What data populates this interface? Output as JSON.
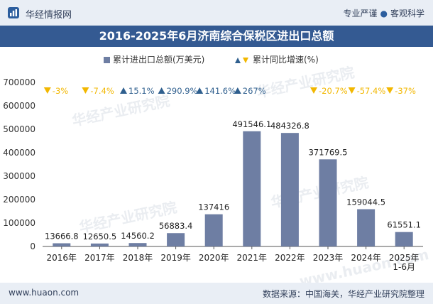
{
  "header": {
    "brand": "华经情报网",
    "tagline_left": "专业严谨",
    "tagline_right": "客观科学"
  },
  "footer": {
    "website": "www.huaon.com",
    "source": "数据来源：中国海关，华经产业研究院整理"
  },
  "watermarks": [
    "华经产业研究院",
    "www.huaon.com"
  ],
  "colors": {
    "bar": "#6e7ea3",
    "up": "#2f5f8e",
    "down": "#f2b700",
    "title_band": "#345a92"
  },
  "chart_data": {
    "type": "bar",
    "title": "2016-2025年6月济南综合保税区进出口总额",
    "categories": [
      "2016年",
      "2017年",
      "2018年",
      "2019年",
      "2020年",
      "2021年",
      "2022年",
      "2023年",
      "2024年",
      "2025年\n1-6月"
    ],
    "series": [
      {
        "name": "累计进出口总额(万美元)",
        "values": [
          13666.8,
          12650.5,
          14560.2,
          56883.4,
          137416,
          491546.1,
          484326.8,
          371769.5,
          159044.5,
          61551.1
        ],
        "labels": [
          "13666.8",
          "12650.5",
          "14560.2",
          "56883.4",
          "137416",
          "491546.1",
          "484326.8",
          "371769.5",
          "159044.5",
          "61551.1"
        ]
      },
      {
        "name": "累计同比增速(%)",
        "values": [
          -3,
          -7.4,
          15.1,
          290.9,
          141.6,
          267,
          null,
          -20.7,
          -57.4,
          -37
        ],
        "labels": [
          "-3%",
          "-7.4%",
          "15.1%",
          "290.9%",
          "141.6%",
          "267%",
          "",
          "-20.7%",
          "-57.4%",
          "-37%"
        ]
      }
    ],
    "ylim": [
      0,
      700000
    ],
    "yticks": [
      0,
      100000,
      200000,
      300000,
      400000,
      500000,
      600000,
      700000
    ],
    "grid": false,
    "legend": "top-center"
  }
}
